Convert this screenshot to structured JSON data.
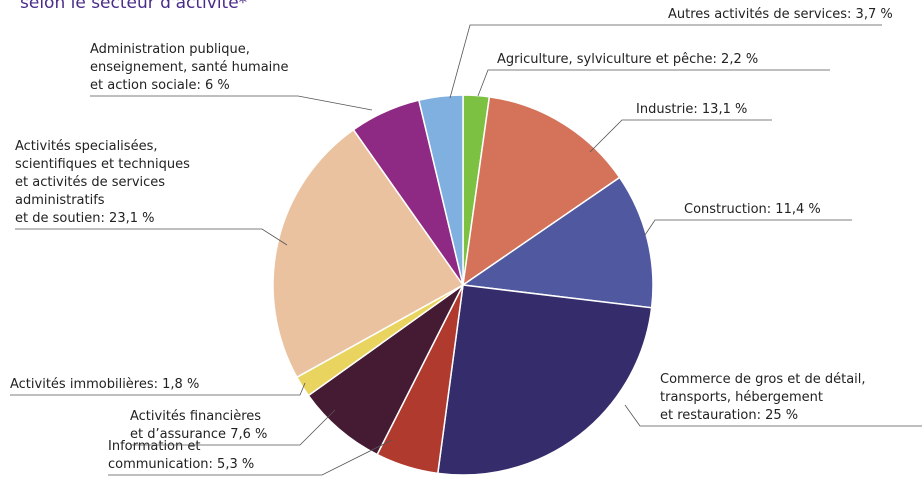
{
  "chart_data": {
    "type": "pie",
    "title": "selon le secteur d'activité*",
    "categories": [
      "Agriculture, sylviculture et pêche",
      "Industrie",
      "Construction",
      "Commerce de gros et de détail,\ntransports, hébergement\net restauration",
      "Information et\ncommunication",
      "Activités financières\net d’assurance",
      "Activités immobilières",
      "Activités specialisées,\nscientifiques et techniques\net activités de services\nadministratifs\net de soutien",
      "Administration publique,\nenseignement, santé humaine\net action sociale",
      "Autres activités de services"
    ],
    "values": [
      2.2,
      13.1,
      11.4,
      25,
      5.3,
      7.6,
      1.8,
      23.1,
      6,
      3.7
    ],
    "value_labels": [
      ": 2,2 %",
      ": 13,1 %",
      ": 11,4 %",
      ": 25 %",
      ": 5,3 %",
      " 7,6 %",
      ": 1,8 %",
      ": 23,1 %",
      ": 6 %",
      ": 3,7 %"
    ],
    "colors": [
      "#7cc142",
      "#d4735a",
      "#5059a0",
      "#352d6b",
      "#b03a2e",
      "#451a33",
      "#e9d460",
      "#ebc29f",
      "#8e2a84",
      "#7fb0e0"
    ]
  }
}
